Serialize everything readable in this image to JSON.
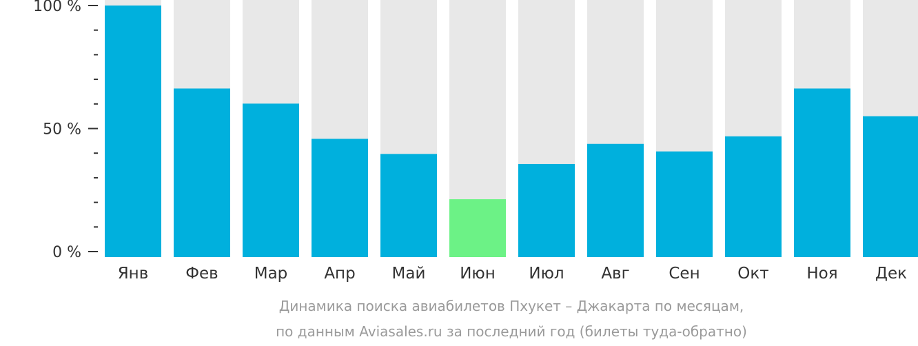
{
  "chart_data": {
    "type": "bar",
    "categories": [
      "Янв",
      "Фев",
      "Мар",
      "Апр",
      "Май",
      "Июн",
      "Июл",
      "Авг",
      "Сен",
      "Окт",
      "Ноя",
      "Дек"
    ],
    "values": [
      100,
      67,
      61,
      47,
      41,
      23,
      37,
      45,
      42,
      48,
      67,
      56
    ],
    "highlight_index": 5,
    "ylim": [
      0,
      100
    ],
    "y_ticks": [
      {
        "value": 0,
        "label": "0 %"
      },
      {
        "value": 50,
        "label": "50 %"
      },
      {
        "value": 100,
        "label": "100 %"
      }
    ],
    "minor_tick_step": 10,
    "caption_lines": [
      "Динамика поиска авиабилетов Пхукет – Джакарта по месяцам,",
      "по данным Aviasales.ru за последний год (билеты туда-обратно)"
    ],
    "colors": {
      "bar": "#00b0dd",
      "bar_highlight": "#6cf286",
      "background_bar": "#e8e8e8"
    }
  }
}
